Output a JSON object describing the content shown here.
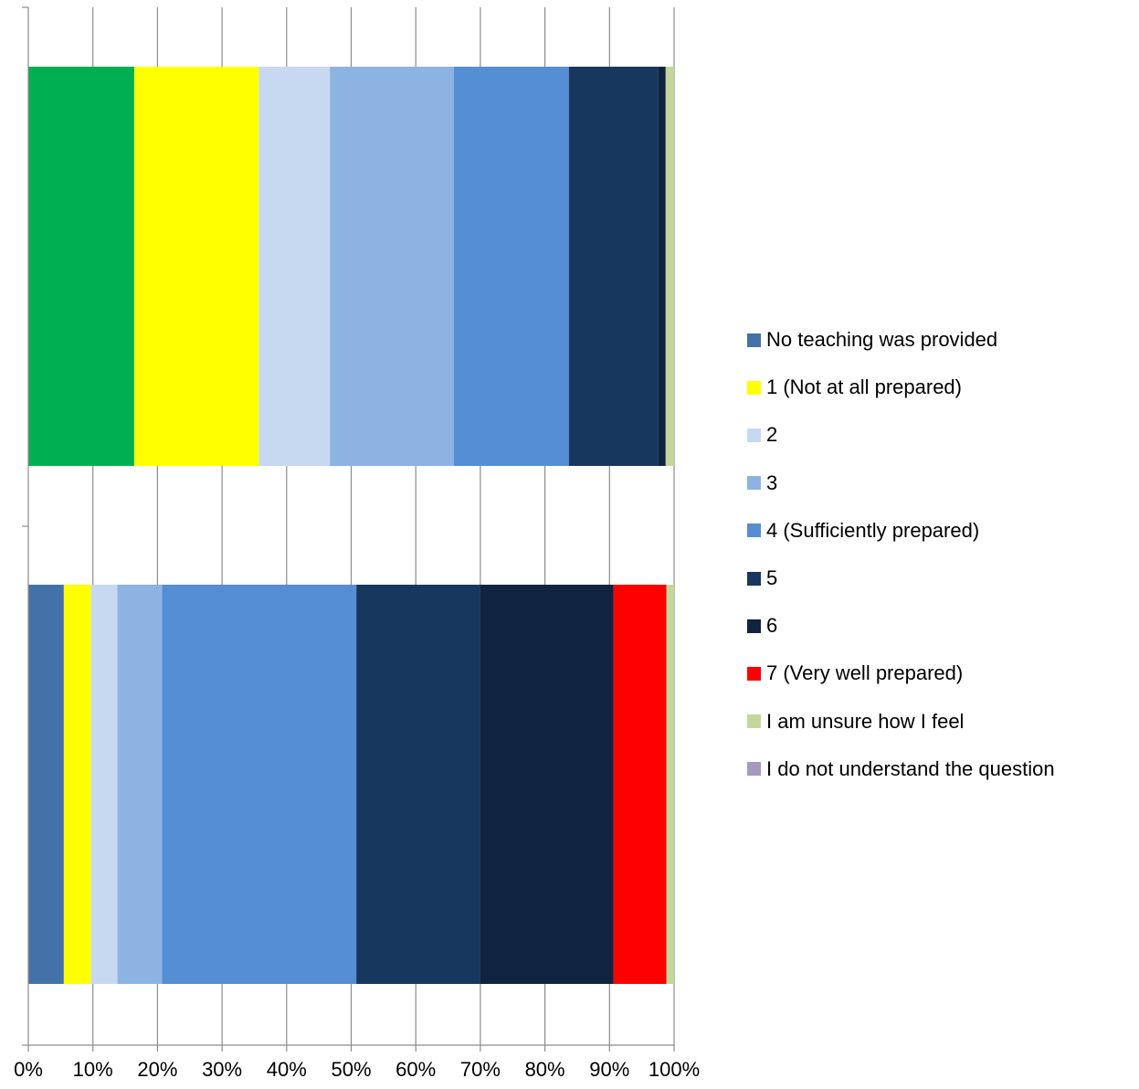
{
  "chart_data": {
    "type": "bar",
    "orientation": "horizontal",
    "stacked": true,
    "percent": true,
    "grid": true,
    "legend_position": "right",
    "xlim": [
      0,
      100
    ],
    "x_ticks": [
      "0%",
      "10%",
      "20%",
      "30%",
      "40%",
      "50%",
      "60%",
      "70%",
      "80%",
      "90%",
      "100%"
    ],
    "categories": [
      "",
      ""
    ],
    "series": [
      {
        "name": "No teaching was provided",
        "color": "#4472A8",
        "values": [
          16.4,
          5.5
        ]
      },
      {
        "name": "1 (Not at all prepared)",
        "color": "#FFFF00",
        "values": [
          19.3,
          4.2
        ]
      },
      {
        "name": "2",
        "color": "#C6D9F1",
        "values": [
          11.0,
          4.1
        ]
      },
      {
        "name": "3",
        "color": "#8DB3E2",
        "values": [
          19.2,
          6.9
        ]
      },
      {
        "name": "4 (Sufficiently prepared)",
        "color": "#558ED5",
        "values": [
          17.8,
          30.1
        ]
      },
      {
        "name": "5",
        "color": "#17375E",
        "values": [
          13.8,
          19.2
        ]
      },
      {
        "name": "6",
        "color": "#10243F",
        "values": [
          1.2,
          20.6
        ]
      },
      {
        "name": "7 (Very well prepared)",
        "color": "#FF0000",
        "values": [
          0.0,
          8.2
        ]
      },
      {
        "name": "I am unsure how I feel",
        "color": "#C3D69B",
        "values": [
          1.3,
          1.2
        ]
      },
      {
        "name": "I do not understand the question",
        "color": "#A599C0",
        "values": [
          0.0,
          0.0
        ]
      }
    ],
    "bar_color_overrides": [
      {
        "category_index": 0,
        "series_index": 0,
        "color": "#00B050"
      }
    ]
  }
}
